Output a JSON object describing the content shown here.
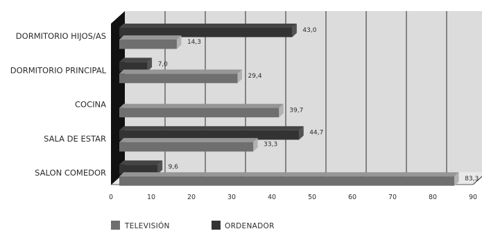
{
  "chart_data": {
    "type": "bar",
    "orientation": "horizontal",
    "categories": [
      "DORMITORIO HIJOS/AS",
      "DORMITORIO PRINCIPAL",
      "COCINA",
      "SALA DE ESTAR",
      "SALON COMEDOR"
    ],
    "series": [
      {
        "name": "TELEVISIÓN",
        "values": [
          14.3,
          29.4,
          39.7,
          33.3,
          83.3
        ],
        "labels": [
          "14,3",
          "29,4",
          "39,7",
          "33,3",
          "83,3"
        ],
        "color": "#6f6f6f"
      },
      {
        "name": "ORDENADOR",
        "values": [
          43.0,
          7.0,
          null,
          44.7,
          9.6
        ],
        "labels": [
          "43,0",
          "7,0",
          "",
          "44,7",
          "9,6"
        ],
        "color": "#333333"
      }
    ],
    "xlim": [
      0,
      90
    ],
    "xticks": [
      0,
      10,
      20,
      30,
      40,
      50,
      60,
      70,
      80,
      90
    ],
    "grid": true,
    "style": "3d",
    "legend_position": "bottom-left",
    "background_color": "#dcdcdc",
    "grid_color": "#2a2a2a"
  }
}
